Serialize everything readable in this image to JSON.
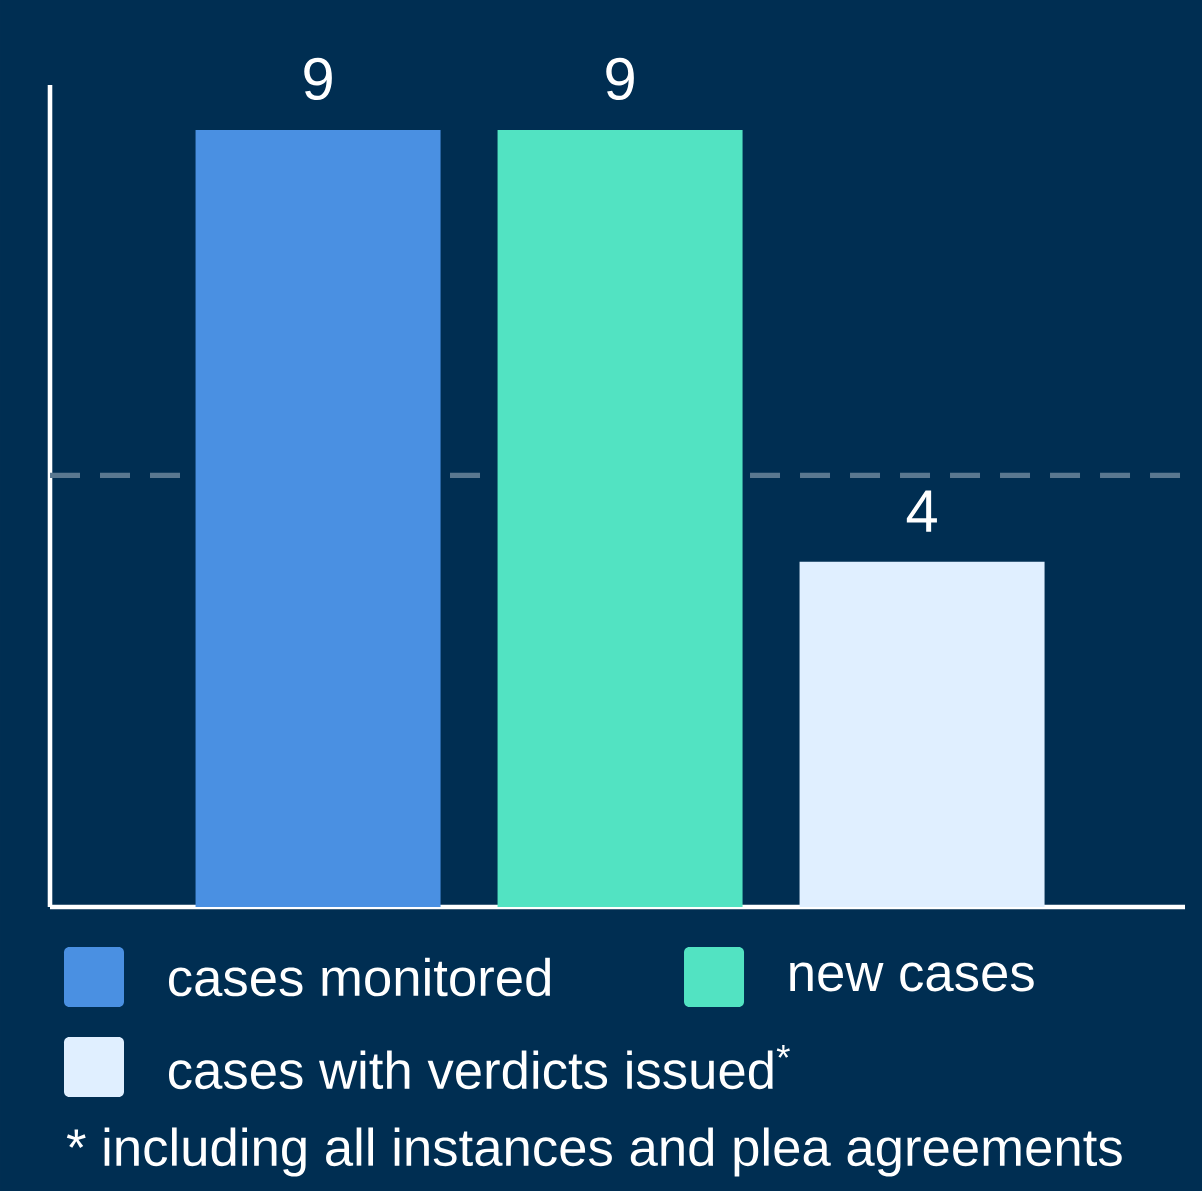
{
  "chart_data": {
    "type": "bar",
    "categories": [
      null
    ],
    "series": [
      {
        "name": "cases monitored",
        "color": "#4a90e2",
        "values": [
          9
        ]
      },
      {
        "name": "new cases",
        "color": "#52e3c2",
        "values": [
          9
        ]
      },
      {
        "name": "cases with verdicts issued$^{*}$",
        "color": "#e0efff",
        "values": [
          4
        ]
      }
    ],
    "data_labels": true,
    "legend": "bottom",
    "ref_lines": [
      {
        "axis": "y",
        "value": 5,
        "color": "#5a7890",
        "line_style": "dashed"
      }
    ],
    "annotations": [
      "* including all instances and plea agreements"
    ]
  }
}
